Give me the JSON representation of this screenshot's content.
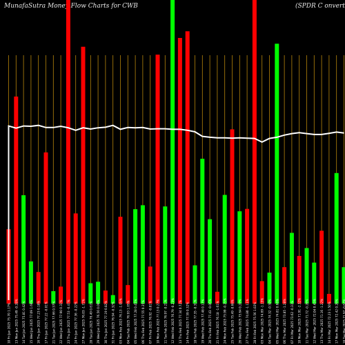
{
  "header": {
    "title": "MunafaSutra  Money Flow  Charts for CWB",
    "title_right": "(SPDR C                    onvertible"
  },
  "chart_data": {
    "type": "bar",
    "title": "MunafaSutra  Money Flow  Charts for CWB (SPDR C onvertible",
    "ylim": [
      0,
      100
    ],
    "colors": {
      "up": "#00ff00",
      "down": "#ff0000",
      "line": "#ffffff",
      "grid": "#b8860b"
    },
    "categories": [
      "10 Fri Jan 2025 75.70 1.17% 75.74 74.63 2.9 times",
      "13 Mon Jan 2025 75.49 -0.28% 75.02 74.44 0.37 times",
      "14 Tue Jan 2025 75.81 0.42% 75.61 75.04 0.43 times",
      "15 Wed Jan 2025 77.09 1.69% 76.66 76.06 0.52 times",
      "16 Thu Jan 2025 77.23 0.18% 77.23 76.87 0.48 times",
      "17 Fri Jan 2025 77.22 -0.01% 77.24 76.66 0.34 times",
      "21 Tue Jan 2025 77.66 0.57% 77.70 77.12 0.47 times",
      "22 Wed Jan 2025 77.90 0.31% 78.06 77.50 0.73 times",
      "23 Thu Jan 2025 77.53 -0.47% 77.55 77.16 0.29 times",
      "24 Fri Jan 2025 77.36 -0.22% 77.77 77.31 0.51 times",
      "27 Mon Jan 2025 76.03 -1.72% 76.39 75.31 1.09 times",
      "28 Tue Jan 2025 76.49 0.61% 76.60 75.77 0.37 times",
      "29 Wed Jan 2025 76.56 0.09% 76.88 76.06 0.62 times",
      "30 Thu Jan 2025 77.19 0.82% 77.40 76.96 0.19 times",
      "31 Fri Jan 2025 76.94 -0.32% 77.41 76.88 0.66 times",
      "03 Mon Feb 2025 76.13 -1.05% 76.18 75.06 0.61 times",
      "04 Tue Feb 2025 76.93 1.05% 77.30 75.91 0.97 times",
      "05 Wed Feb 2025 77.28 0.45% 77.30 76.84 0.48 times",
      "06 Thu Feb 2025 77.55 0.35% 77.62 77.20 0.71 times",
      "07 Fri Feb 2025 76.92 -0.81% 77.79 76.86 0.66 times",
      "10 Mon Feb 2025 77.13 0.27% 77.20 76.63 0.28 times",
      "11 Tue Feb 2025 76.97 -0.21% 77.09 76.38 0.71 times",
      "12 Wed Feb 2025 76.79 -0.23% 76.96 76.13 0.96 times",
      "13 Thu Feb 2025 77.34 0.72% 77.41 76.84 0.49 times",
      "14 Fri Feb 2025 77.59 0.32% 77.77 77.31 0.59 times",
      "18 Tue Feb 2025 77.35 -0.31% 77.55 77.13 0.88 times",
      "19 Wed Feb 2025 77.48 0.17% 77.52 76.98 0.55 times",
      "20 Thu Feb 2025 77.43 -0.06% 77.75 77.22 0.56 times",
      "21 Fri Feb 2025 76.18 -1.61% 77.47 76.06 1.42 times",
      "24 Mon Feb 2025 75.99 -0.25% 76.45 75.80 0.58 times",
      "25 Tue Feb 2025 75.49 -0.66% 75.86 75.21 0.53 times",
      "26 Wed Feb 2025 75.64 0.20% 75.84 75.22 0.49 times",
      "27 Thu Feb 2025 74.80 -1.11% 75.82 74.74 0.62 times",
      "28 Fri Feb 2025 75.56 1.02% 75.57 74.48 0.67 times",
      "03 Mon Mar 2025 74.69 -1.15% 75.84 74.52 0.38 times",
      "04 Tue Mar 2025 74.32 -0.50% 74.53 73.51 1.12 times",
      "05 Wed Mar 2025 74.81 0.66% 74.91 73.91 0.76 times",
      "06 Thu Mar 2025 73.85 -1.28% 74.46 73.69 0.83 times",
      "07 Fri Mar 2025 73.62 -0.31% 73.76 72.91 0.92 times",
      "10 Mon Mar 2025 71.91 -2.32% 72.88 71.80 1.18 times",
      "11 Tue Mar 2025 71.72 -0.26% 72.18 71.28 0.71 times",
      "12 Wed Mar 2025 72.04 0.45% 72.24 71.70 0.79 times",
      "13 Thu Mar 2025 71.16 -1.22% 71.89 71.08 1.05 times",
      "14 Fri Mar 2025 72.23 1.50% 72.29 71.71 0.64 times",
      "17 Mon Mar 2025 72.42 0.26% 72.59 72.11 0.72 times",
      "18 Tue Mar 2025 71.97 -0.62% 72.24 71.81 0.77 times"
    ],
    "tick_labels": [
      "10 Fri Jan 2025 75.70 1.17%",
      "13 Mon Jan 2025 75.49 -0.28%",
      "14 Tue Jan 2025 75.81 0.42%",
      "15 Wed Jan 2025 77.09 1.69%",
      "16 Thu Jan 2025 77.23 0.18%",
      "17 Fri Jan 2025 77.22 -0.01%",
      "21 Tue Jan 2025 77.66 0.57%",
      "22 Wed Jan 2025 77.90 0.31%",
      "23 Thu Jan 2025 77.53 -0.47%",
      "24 Fri Jan 2025 77.36 -0.22%",
      "27 Mon Jan 2025 76.03 -1.72%",
      "28 Tue Jan 2025 76.49 0.61%",
      "29 Wed Jan 2025 76.56 0.09%",
      "30 Thu Jan 2025 77.19 0.82%",
      "31 Fri Jan 2025 76.94 -0.32%",
      "03 Mon Feb 2025 76.13 -1.05%",
      "04 Tue Feb 2025 76.93 1.05%",
      "05 Wed Feb 2025 77.28 0.45%",
      "06 Thu Feb 2025 77.55 0.35%",
      "07 Fri Feb 2025 76.92 -0.81%",
      "10 Mon Feb 2025 77.13 0.27%",
      "11 Tue Feb 2025 76.97 -0.21%",
      "12 Wed Feb 2025 76.79 -0.23%",
      "13 Thu Feb 2025 77.34 0.72%",
      "14 Fri Feb 2025 77.59 0.32%",
      "18 Tue Feb 2025 77.35 -0.31%",
      "19 Wed Feb 2025 77.48 0.17%",
      "20 Thu Feb 2025 77.43 -0.06%",
      "21 Fri Feb 2025 76.18 -1.61%",
      "24 Mon Feb 2025 75.99 -0.25%",
      "25 Tue Feb 2025 75.49 -0.66%",
      "26 Wed Feb 2025 75.64 0.20%",
      "27 Thu Feb 2025 74.80 -1.11%",
      "28 Fri Feb 2025 75.56 1.02%",
      "03 Mon Mar 2025 74.69 -1.15%",
      "04 Tue Mar 2025 74.32 -0.50%",
      "05 Wed Mar 2025 74.81 0.66%",
      "06 Thu Mar 2025 73.85 -1.28%",
      "07 Fri Mar 2025 73.62 -0.31%",
      "10 Mon Mar 2025 71.91 -2.32%",
      "11 Tue Mar 2025 71.72 -0.26%",
      "12 Wed Mar 2025 72.04 0.45%",
      "13 Thu Mar 2025 71.16 -1.22%",
      "14 Fri Mar 2025 72.23 1.50%",
      "17 Mon Mar 2025 72.42 0.26%",
      "18 Tue Mar 2025 71.97 -0.62%"
    ],
    "bar_colors": [
      "red",
      "red",
      "green",
      "green",
      "red",
      "red",
      "green",
      "red",
      "red",
      "red",
      "red",
      "green",
      "green",
      "red",
      "green",
      "red",
      "red",
      "green",
      "green",
      "red",
      "red",
      "green",
      "green",
      "red",
      "red",
      "green",
      "green",
      "green",
      "red",
      "green",
      "red",
      "green",
      "red",
      "red",
      "red",
      "green",
      "green",
      "red",
      "green",
      "red",
      "green",
      "green",
      "red",
      "red",
      "green",
      "green"
    ],
    "values": [
      24.5,
      68.2,
      35.7,
      13.9,
      10.4,
      49.8,
      4.1,
      5.6,
      100,
      29.7,
      84.6,
      6.7,
      7.2,
      4.3,
      2.8,
      28.6,
      6.1,
      31.1,
      32.4,
      12.2,
      82.0,
      32.0,
      101.0,
      87.5,
      89.7,
      12.6,
      47.7,
      27.8,
      3.9,
      35.8,
      57.4,
      30.4,
      31.2,
      101.0,
      7.4,
      10.2,
      85.6,
      12.0,
      23.3,
      15.7,
      18.3,
      13.5,
      24.0,
      3.2,
      43.0,
      12.0
    ],
    "line": [
      58.5,
      57.8,
      58.5,
      58.4,
      58.7,
      58.0,
      58.0,
      58.4,
      57.9,
      57.1,
      57.9,
      57.5,
      57.9,
      58.1,
      58.7,
      57.4,
      58.0,
      57.9,
      58.0,
      57.5,
      57.6,
      57.6,
      57.4,
      57.4,
      57.1,
      56.6,
      55.1,
      54.8,
      54.6,
      54.6,
      54.5,
      54.6,
      54.5,
      54.4,
      53.2,
      54.4,
      54.8,
      55.5,
      56.0,
      56.3,
      56.0,
      55.7,
      55.7,
      56.1,
      56.5,
      56.2
    ]
  }
}
